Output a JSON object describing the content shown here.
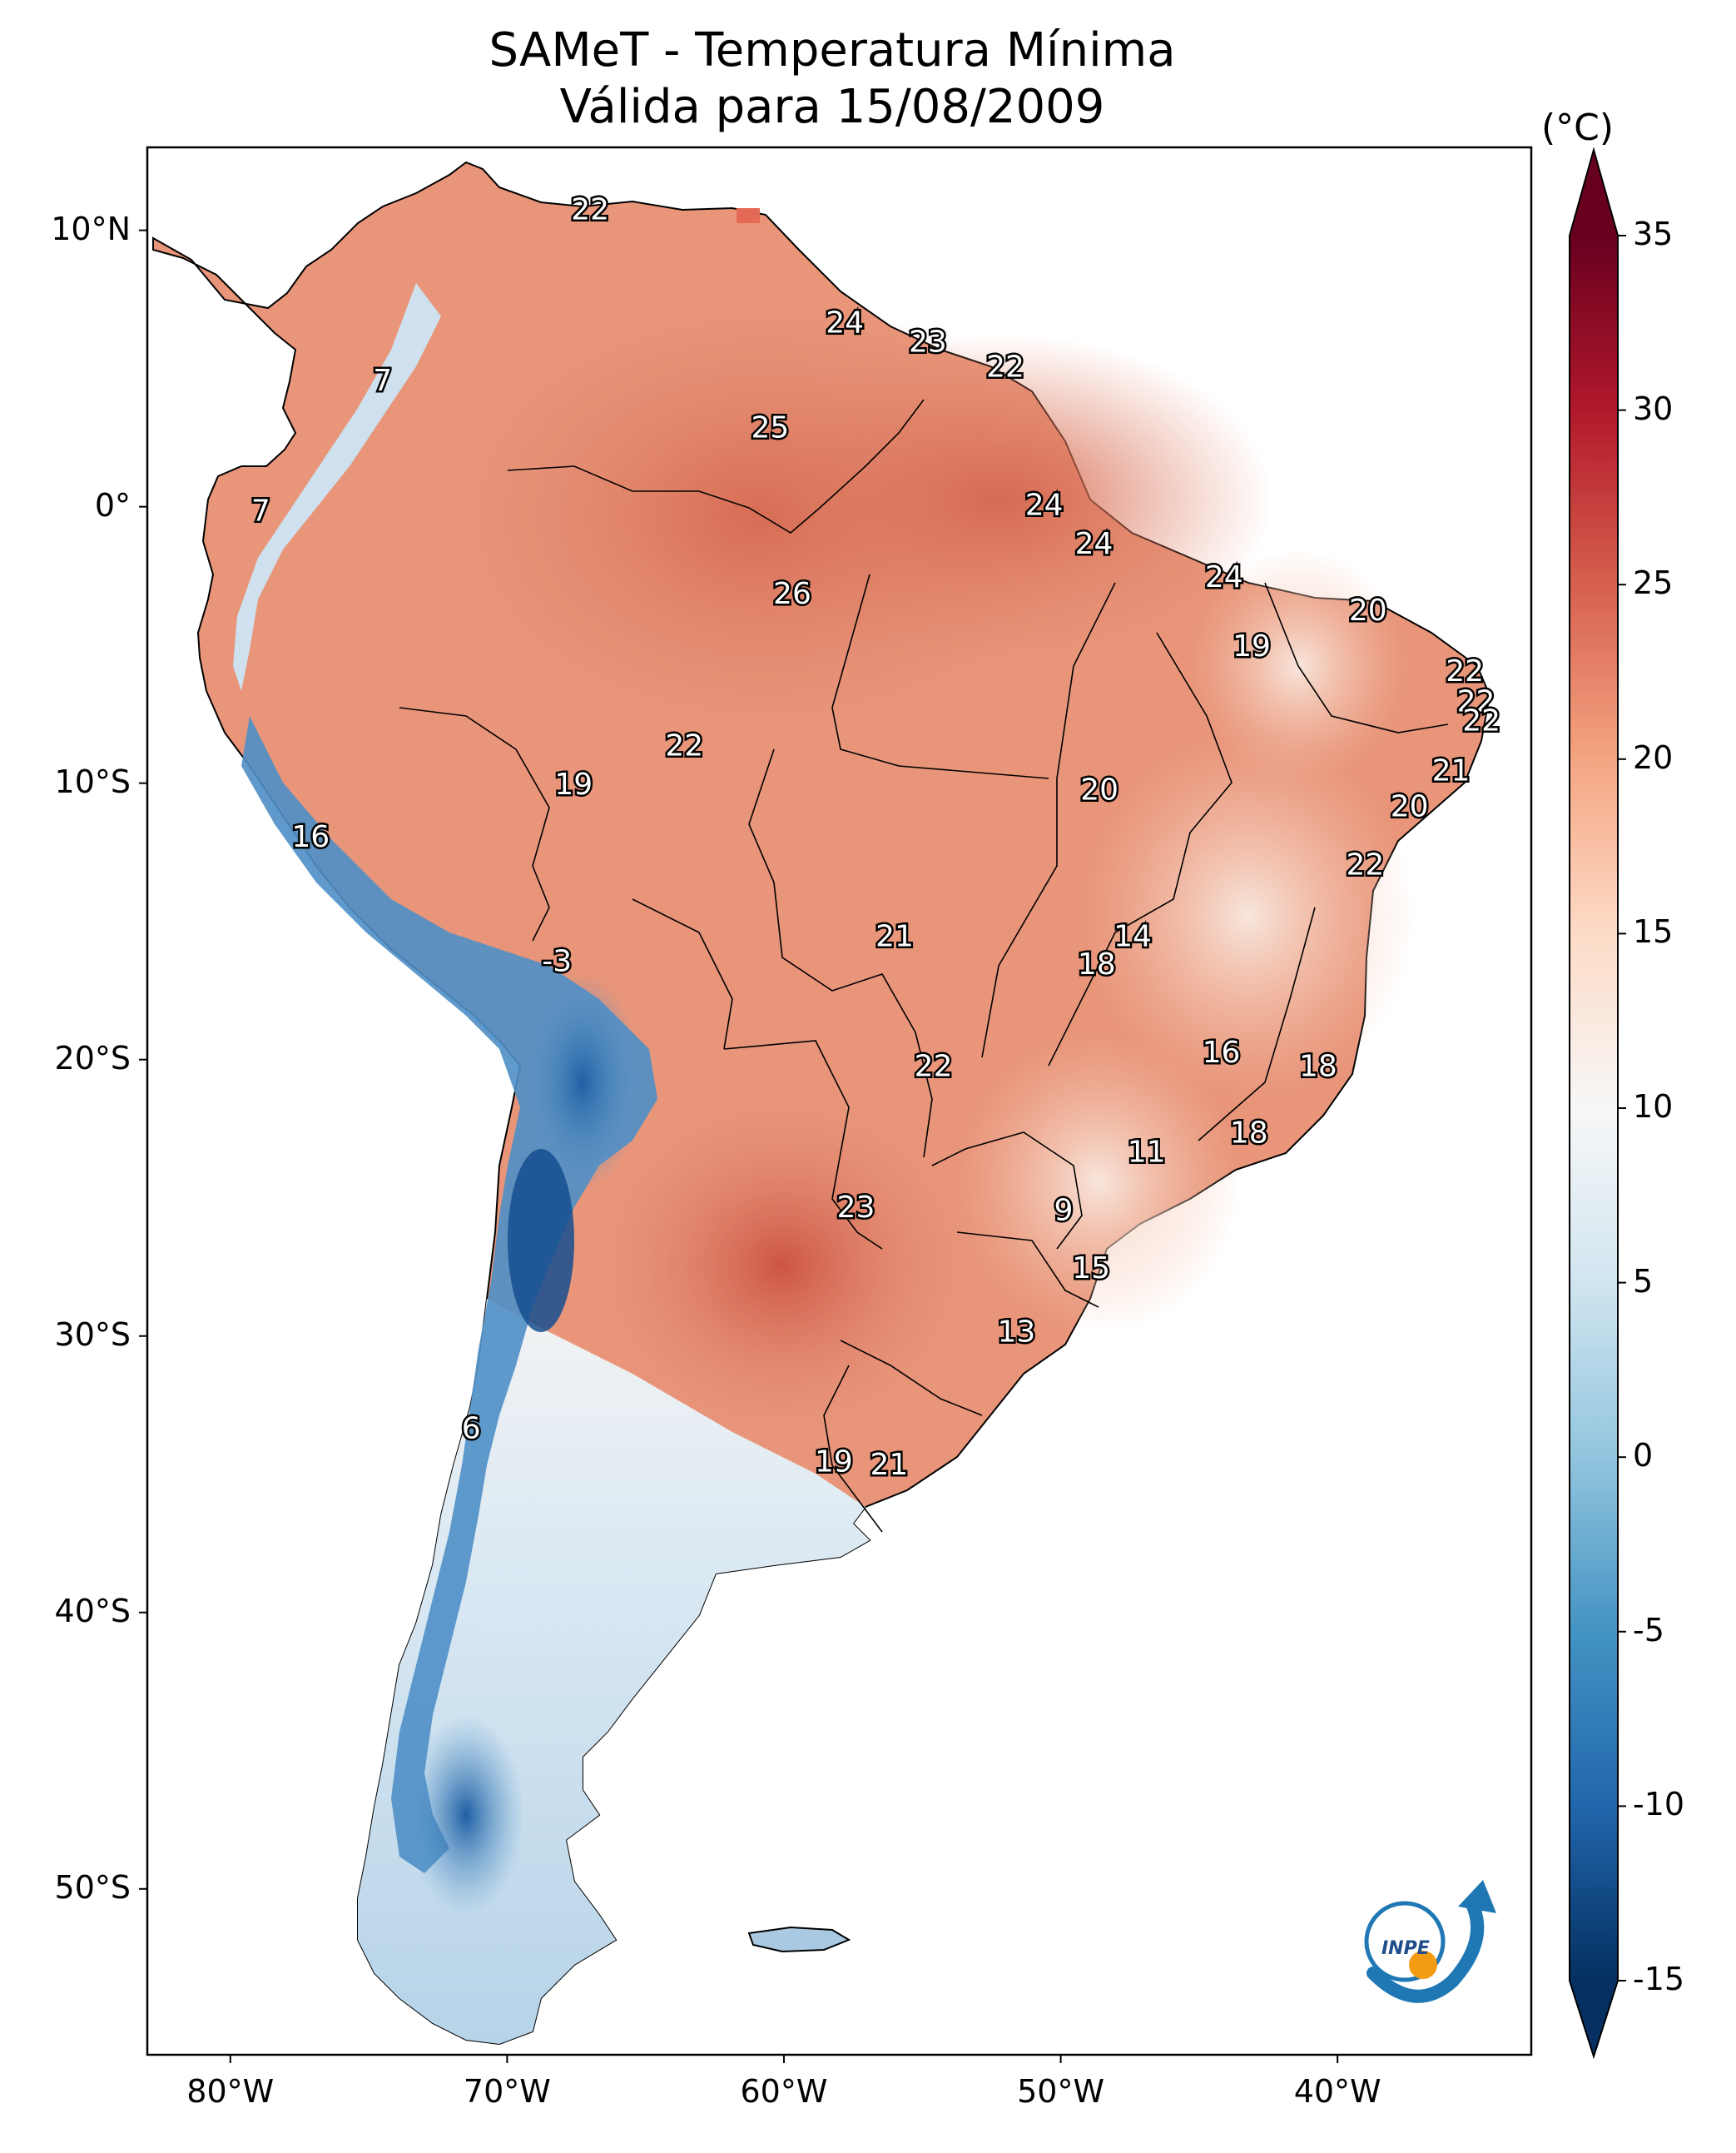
{
  "title": {
    "line1": "SAMeT - Temperatura Mínima",
    "line2": "Válida para 15/08/2009"
  },
  "map": {
    "region": "South America",
    "lat_ticks": [
      "10°N",
      "0°",
      "10°S",
      "20°S",
      "30°S",
      "40°S",
      "50°S"
    ],
    "lon_ticks": [
      "80°W",
      "70°W",
      "60°W",
      "50°W",
      "40°W"
    ],
    "extent": {
      "lon_min": -83,
      "lon_max": -33,
      "lat_min": -56,
      "lat_max": 13
    },
    "point_labels": [
      {
        "value": "22",
        "lon": -67,
        "lat": 10.7
      },
      {
        "value": "24",
        "lon": -57.8,
        "lat": 6.6
      },
      {
        "value": "23",
        "lon": -54.8,
        "lat": 5.9
      },
      {
        "value": "22",
        "lon": -52,
        "lat": 5.0
      },
      {
        "value": "7",
        "lon": -74.5,
        "lat": 4.5
      },
      {
        "value": "25",
        "lon": -60.5,
        "lat": 2.8
      },
      {
        "value": "7",
        "lon": -78.9,
        "lat": -0.2
      },
      {
        "value": "24",
        "lon": -50.6,
        "lat": 0.0
      },
      {
        "value": "24",
        "lon": -48.8,
        "lat": -1.4
      },
      {
        "value": "24",
        "lon": -44.1,
        "lat": -2.6
      },
      {
        "value": "26",
        "lon": -59.7,
        "lat": -3.2
      },
      {
        "value": "20",
        "lon": -38.9,
        "lat": -3.8
      },
      {
        "value": "19",
        "lon": -43.1,
        "lat": -5.1
      },
      {
        "value": "22",
        "lon": -35.4,
        "lat": -6.0
      },
      {
        "value": "22",
        "lon": -35.0,
        "lat": -7.1
      },
      {
        "value": "22",
        "lon": -34.8,
        "lat": -7.8
      },
      {
        "value": "22",
        "lon": -63.6,
        "lat": -8.7
      },
      {
        "value": "21",
        "lon": -35.9,
        "lat": -9.6
      },
      {
        "value": "19",
        "lon": -67.6,
        "lat": -10.1
      },
      {
        "value": "20",
        "lon": -48.6,
        "lat": -10.3
      },
      {
        "value": "20",
        "lon": -37.4,
        "lat": -10.9
      },
      {
        "value": "16",
        "lon": -77.1,
        "lat": -12.0
      },
      {
        "value": "22",
        "lon": -39.0,
        "lat": -13.0
      },
      {
        "value": "14",
        "lon": -47.4,
        "lat": -15.6
      },
      {
        "value": "21",
        "lon": -56.0,
        "lat": -15.6
      },
      {
        "value": "18",
        "lon": -48.7,
        "lat": -16.6
      },
      {
        "value": "-3",
        "lon": -68.2,
        "lat": -16.5
      },
      {
        "value": "16",
        "lon": -44.2,
        "lat": -19.8
      },
      {
        "value": "18",
        "lon": -40.7,
        "lat": -20.3
      },
      {
        "value": "22",
        "lon": -54.6,
        "lat": -20.3
      },
      {
        "value": "18",
        "lon": -43.2,
        "lat": -22.7
      },
      {
        "value": "11",
        "lon": -46.9,
        "lat": -23.4
      },
      {
        "value": "9",
        "lon": -49.9,
        "lat": -25.5
      },
      {
        "value": "23",
        "lon": -57.4,
        "lat": -25.4
      },
      {
        "value": "15",
        "lon": -48.9,
        "lat": -27.6
      },
      {
        "value": "13",
        "lon": -51.6,
        "lat": -29.9
      },
      {
        "value": "6",
        "lon": -71.3,
        "lat": -33.4
      },
      {
        "value": "19",
        "lon": -58.2,
        "lat": -34.6
      },
      {
        "value": "21",
        "lon": -56.2,
        "lat": -34.7
      }
    ]
  },
  "colorbar": {
    "unit": "(°C)",
    "min": -15,
    "max": 35,
    "ticks": [
      "35",
      "30",
      "25",
      "20",
      "15",
      "10",
      "5",
      "0",
      "-5",
      "-10",
      "-15"
    ],
    "colormap": "RdBu_r",
    "colors": [
      "#053061",
      "#2166ac",
      "#4393c3",
      "#92c5de",
      "#d1e5f0",
      "#f7f7f7",
      "#fddbc7",
      "#f4a582",
      "#d6604d",
      "#b2182b",
      "#67001f"
    ]
  },
  "logo": {
    "text": "INPE",
    "colors": {
      "blue": "#1f78b4",
      "orange": "#f39c12"
    }
  }
}
